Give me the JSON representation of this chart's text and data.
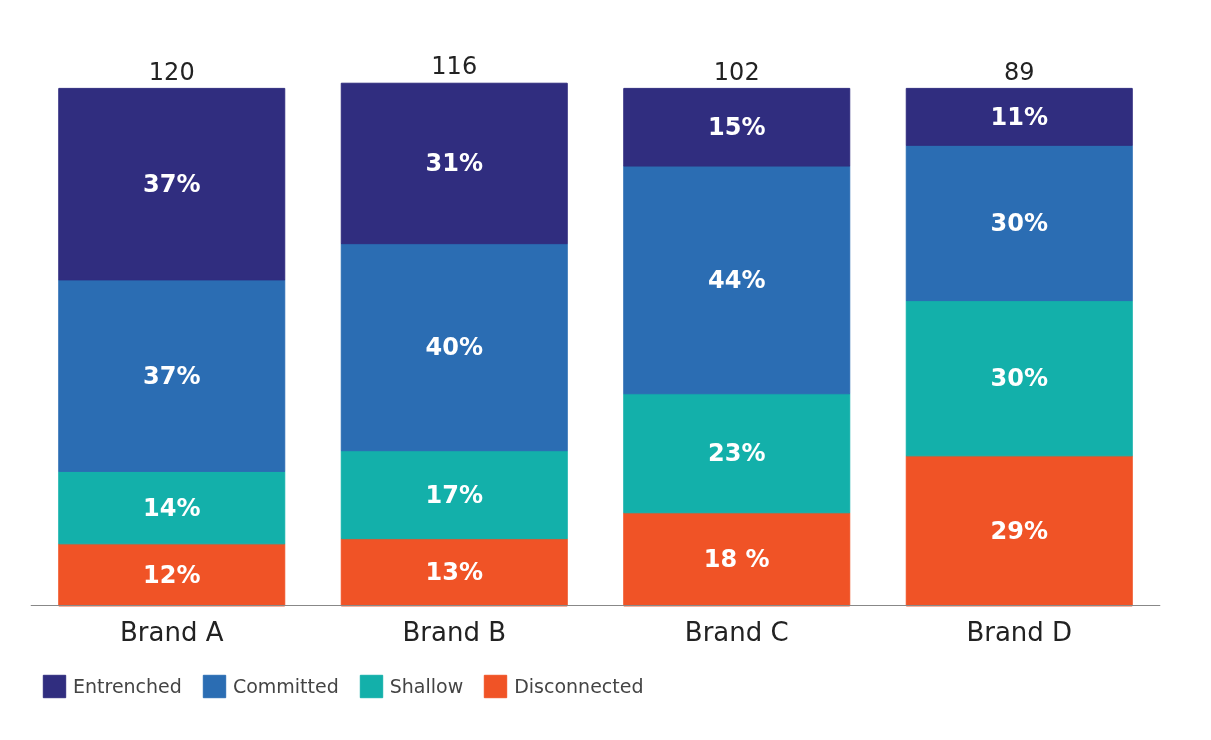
{
  "chart_data": {
    "type": "bar",
    "stacked": true,
    "categories": [
      "Brand A",
      "Brand B",
      "Brand C",
      "Brand D"
    ],
    "series": [
      {
        "name": "Disconnected",
        "color": "#f05326",
        "values": [
          12,
          13,
          18,
          29
        ],
        "value_labels": [
          "12%",
          "13%",
          "18 %",
          "29%"
        ]
      },
      {
        "name": "Shallow",
        "color": "#13b0aa",
        "values": [
          14,
          17,
          23,
          30
        ],
        "value_labels": [
          "14%",
          "17%",
          "23%",
          "30%"
        ]
      },
      {
        "name": "Committed",
        "color": "#2b6db3",
        "values": [
          37,
          40,
          44,
          30
        ],
        "value_labels": [
          "37%",
          "40%",
          "44%",
          "30%"
        ]
      },
      {
        "name": "Entrenched",
        "color": "#302d7f",
        "values": [
          37,
          31,
          15,
          11
        ],
        "value_labels": [
          "37%",
          "31%",
          "15%",
          "11%"
        ]
      }
    ],
    "annotations": [
      "120",
      "116",
      "102",
      "89"
    ],
    "legend": "bottom left",
    "grid": false
  }
}
